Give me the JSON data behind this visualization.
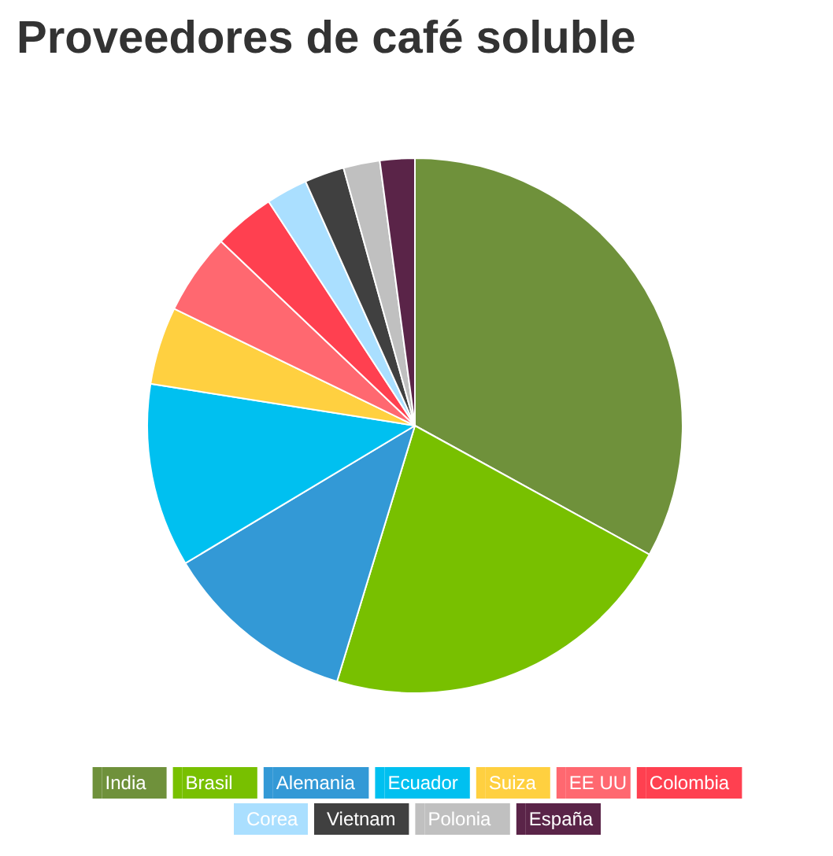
{
  "chart_data": {
    "type": "pie",
    "title": "Proveedores de café soluble",
    "categories": [
      "India",
      "Brasil",
      "Alemania",
      "Ecuador",
      "Suiza",
      "EE UU",
      "Colombia",
      "Corea",
      "Vietnam",
      "Polonia",
      "España"
    ],
    "values": [
      33.0,
      21.7,
      11.7,
      11.1,
      4.7,
      4.9,
      3.7,
      2.5,
      2.4,
      2.2,
      2.1
    ],
    "colors": [
      "#6f913b",
      "#78c000",
      "#3399d6",
      "#00c0f0",
      "#ffd040",
      "#ff6870",
      "#ff4050",
      "#aadfff",
      "#404040",
      "#c0c0c0",
      "#5a2448"
    ],
    "legend": "bottom"
  }
}
